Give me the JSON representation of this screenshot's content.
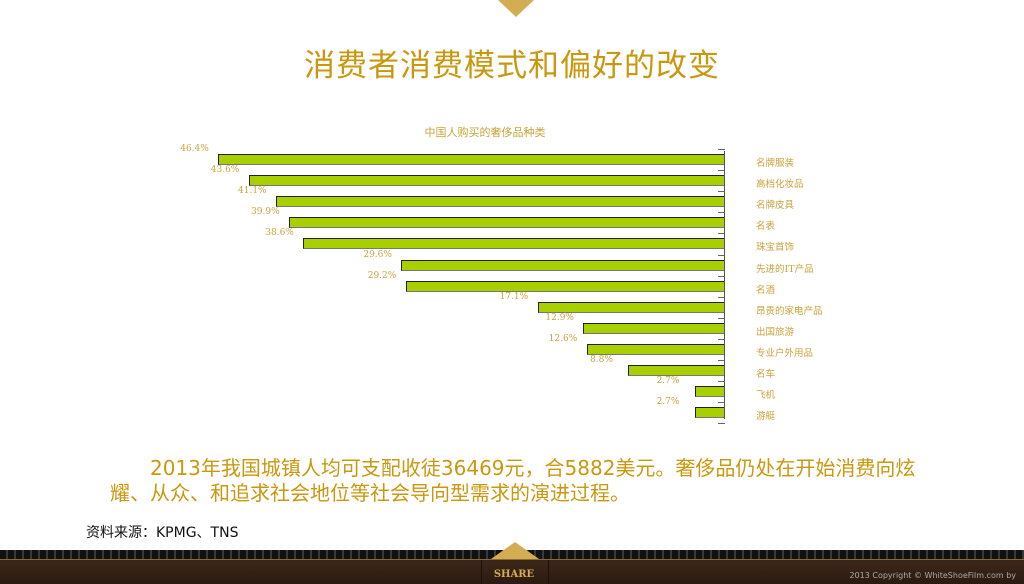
{
  "page": {
    "title": "消费者消费模式和偏好的改变",
    "summary": "2013年我国城镇人均可支配收徒36469元，合5882美元。奢侈品仍处在开始消费向炫耀、从众、和追求社会地位等社会导向型需求的演进过程。",
    "source": "资料来源：KPMG、TNS"
  },
  "footer": {
    "share_label": "SHARE",
    "copyright": "2013 Copyright © WhiteShoeFilm.com by"
  },
  "colors": {
    "accent": "#c9980f",
    "bar_fill": "#a8d000",
    "marker": "#d4ad52",
    "footer_bg": "#3b2619"
  },
  "chart_data": {
    "type": "bar",
    "orientation": "horizontal",
    "title": "中国人购买的奢侈品种类",
    "categories": [
      "名牌服装",
      "高档化妆品",
      "名牌皮具",
      "名表",
      "珠宝首饰",
      "先进的IT产品",
      "名酒",
      "昂贵的家电产品",
      "出国旅游",
      "专业户外用品",
      "名车",
      "飞机",
      "游艇"
    ],
    "values": [
      46.4,
      43.6,
      41.1,
      39.9,
      38.6,
      29.6,
      29.2,
      17.1,
      12.9,
      12.6,
      8.8,
      2.7,
      2.7
    ],
    "labels": [
      "46.4%",
      "43.6%",
      "41.1%",
      "39.9%",
      "38.6%",
      "29.6%",
      "29.2%",
      "17.1%",
      "12.9%",
      "12.6%",
      "8.8%",
      "2.7%",
      "2.7%"
    ],
    "xlabel": "",
    "ylabel": "",
    "xlim": [
      0,
      50
    ],
    "grid": false,
    "legend": "none",
    "axis_position": "right"
  }
}
